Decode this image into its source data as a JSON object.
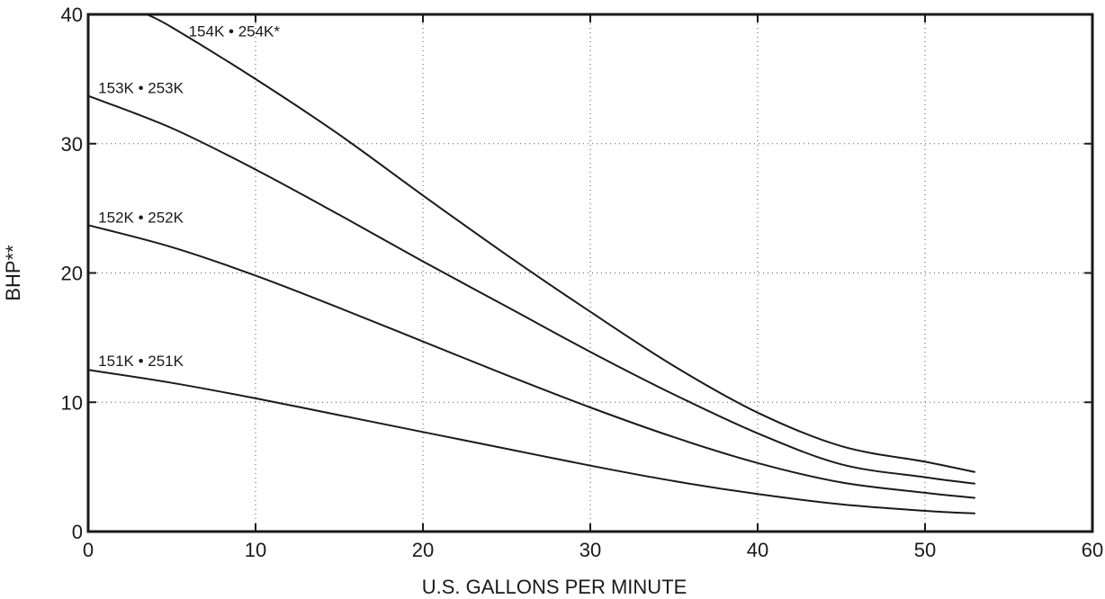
{
  "chart_data": {
    "type": "line",
    "xlabel": "U.S. GALLONS PER MINUTE",
    "ylabel": "BHP**",
    "xlim": [
      0,
      60
    ],
    "ylim": [
      0,
      40
    ],
    "xticks": [
      0,
      10,
      20,
      30,
      40,
      50,
      60
    ],
    "yticks": [
      0,
      10,
      20,
      30,
      40
    ],
    "grid": true,
    "legend": "none",
    "series": [
      {
        "name": "151K • 251K",
        "x": [
          0,
          5,
          10,
          15,
          20,
          25,
          30,
          35,
          40,
          45,
          50,
          53
        ],
        "y": [
          12.5,
          11.5,
          10.3,
          9.0,
          7.7,
          6.4,
          5.1,
          3.9,
          2.9,
          2.1,
          1.6,
          1.4
        ]
      },
      {
        "name": "152K • 252K",
        "x": [
          0,
          5,
          10,
          15,
          20,
          25,
          30,
          35,
          40,
          45,
          50,
          53
        ],
        "y": [
          23.7,
          22.0,
          19.8,
          17.3,
          14.7,
          12.1,
          9.6,
          7.3,
          5.3,
          3.8,
          3.0,
          2.6
        ]
      },
      {
        "name": "153K • 253K",
        "x": [
          0,
          5,
          10,
          15,
          20,
          25,
          30,
          35,
          40,
          45,
          50,
          53
        ],
        "y": [
          33.7,
          31.2,
          28.0,
          24.5,
          20.9,
          17.4,
          13.9,
          10.6,
          7.6,
          5.2,
          4.2,
          3.7
        ]
      },
      {
        "name": "154K • 254K*",
        "x": [
          3.5,
          5,
          10,
          15,
          20,
          25,
          30,
          35,
          40,
          45,
          50,
          53
        ],
        "y": [
          40.0,
          39.0,
          35.0,
          30.7,
          26.0,
          21.4,
          17.0,
          12.8,
          9.2,
          6.6,
          5.4,
          4.6
        ]
      }
    ],
    "annotations": [
      {
        "text": "154K • 254K*",
        "x": 6.0,
        "y": 38.3
      },
      {
        "text": "153K • 253K",
        "x": 0.6,
        "y": 33.9
      },
      {
        "text": "152K • 252K",
        "x": 0.6,
        "y": 23.9
      },
      {
        "text": "151K • 251K",
        "x": 0.6,
        "y": 12.8
      }
    ]
  }
}
